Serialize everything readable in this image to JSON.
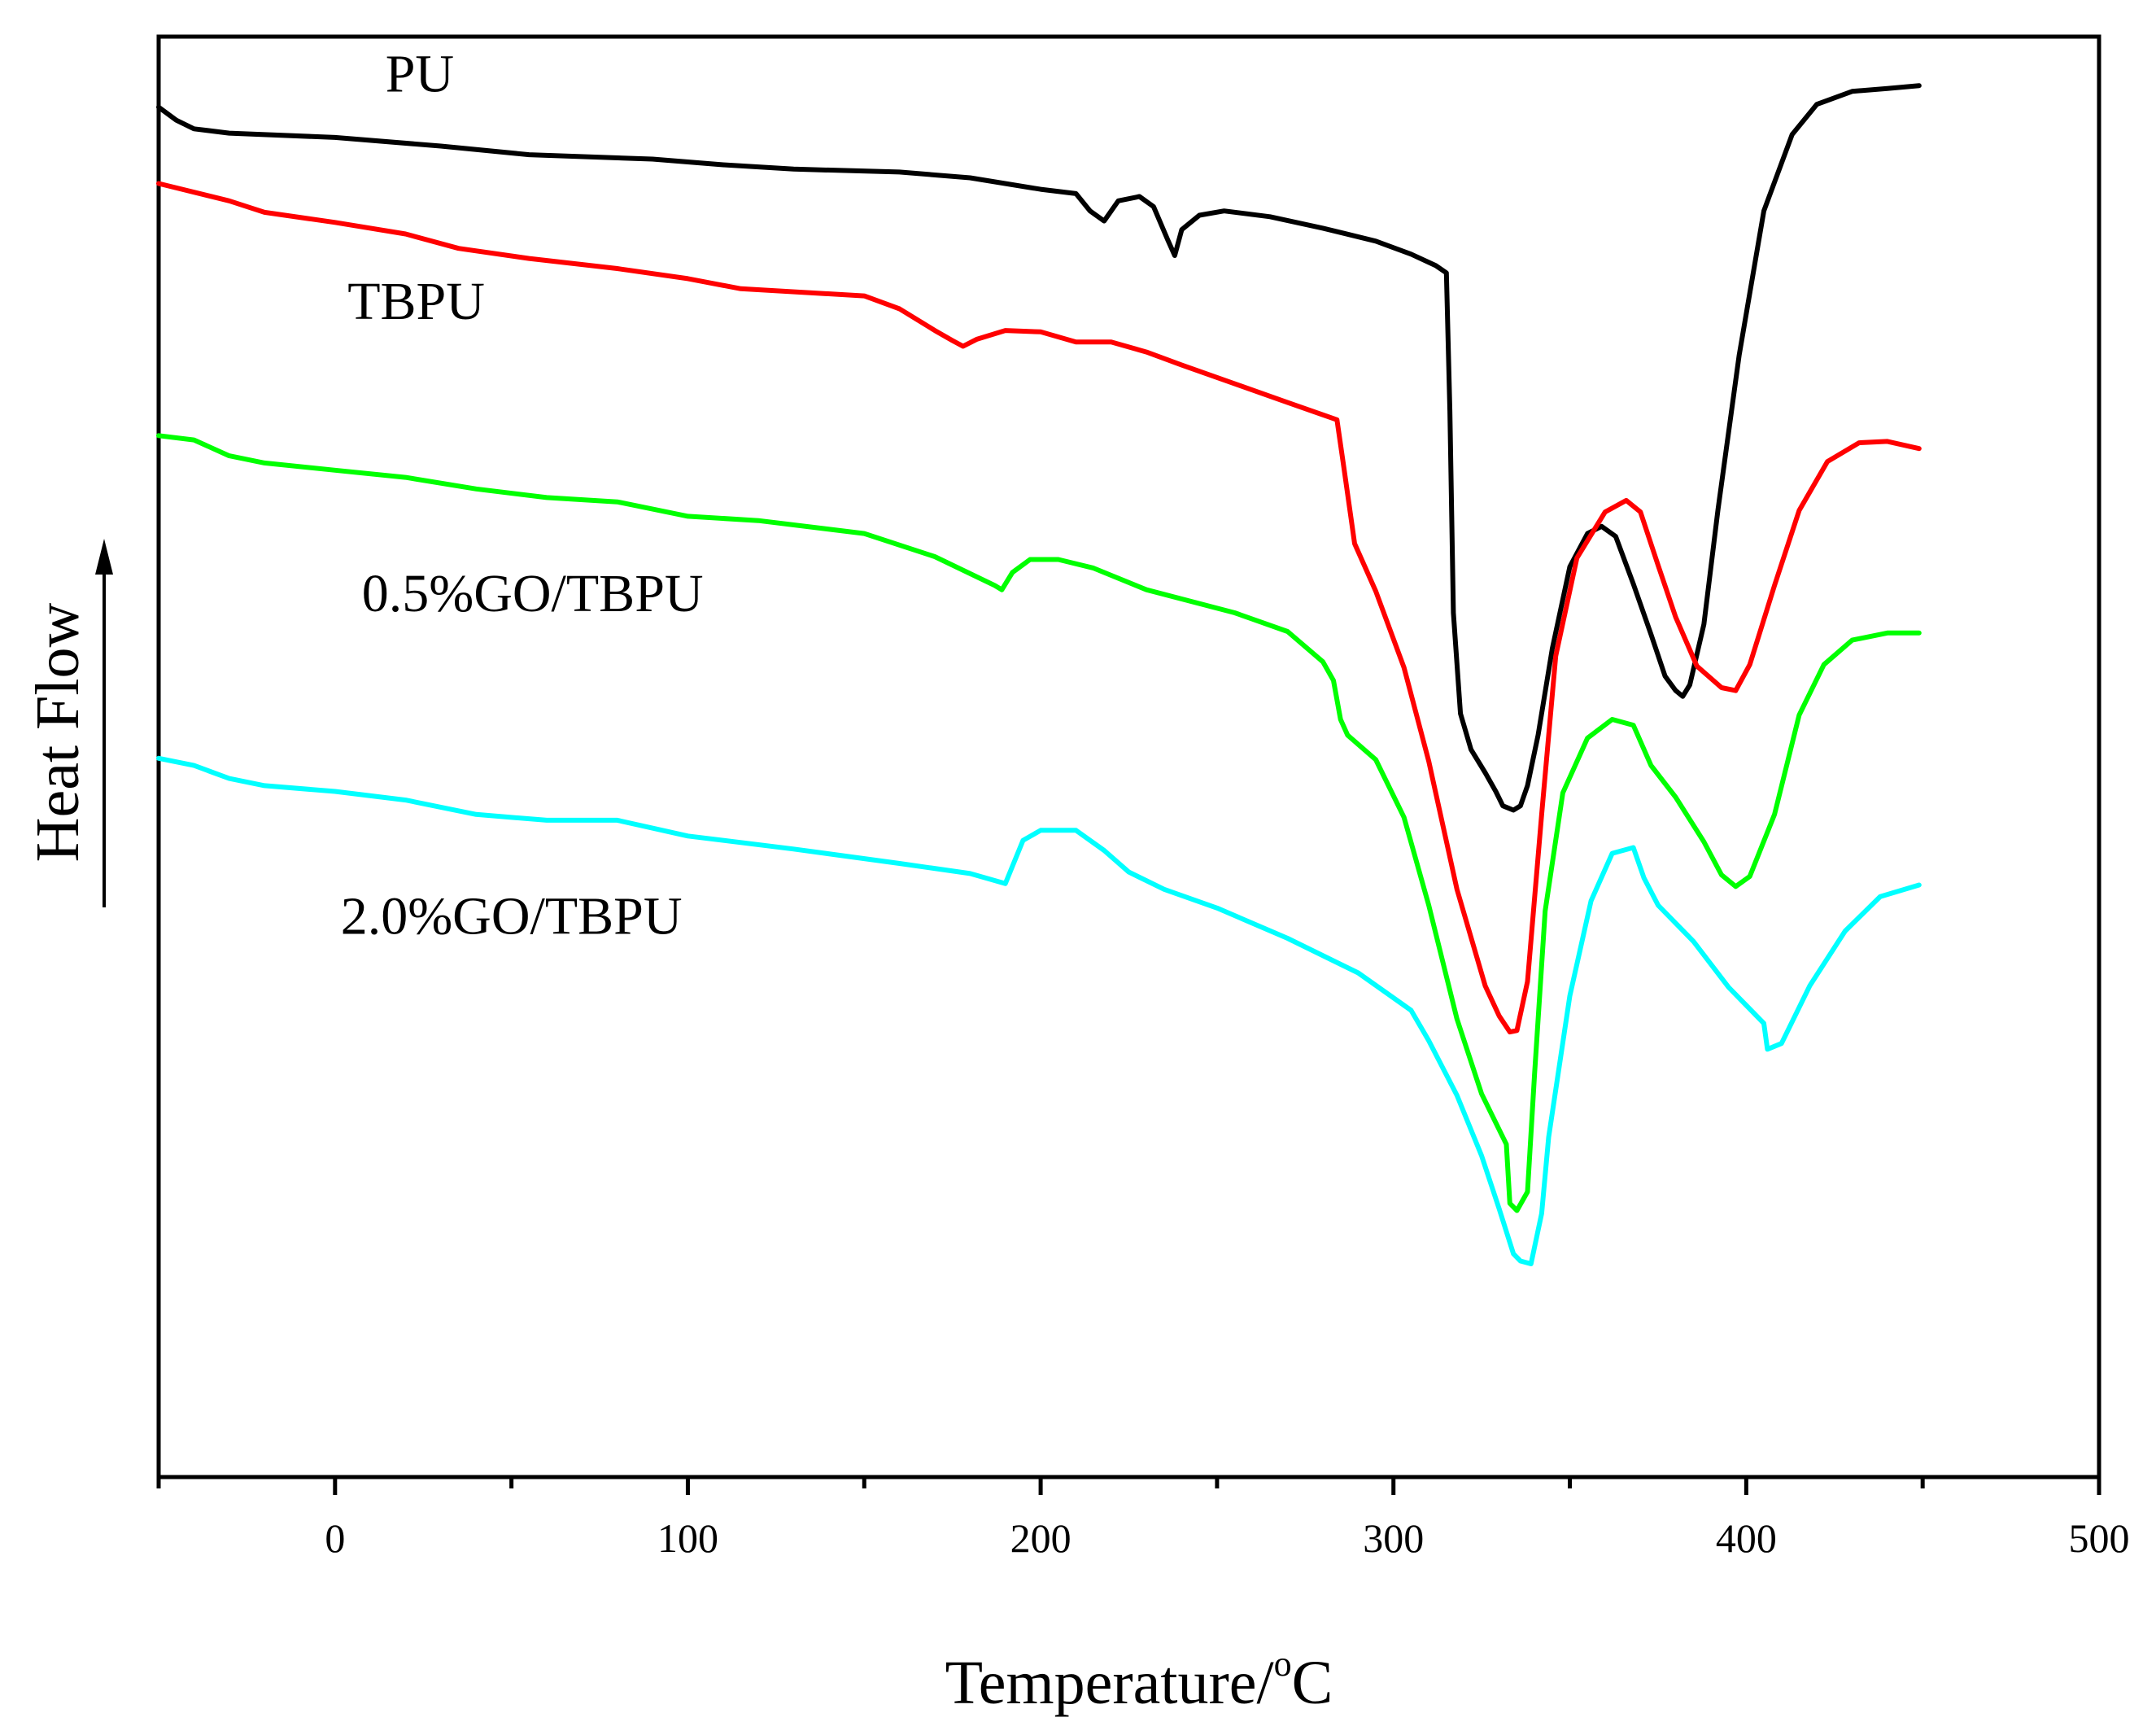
{
  "chart_data": {
    "type": "line",
    "title": "",
    "xlabel": "Temperature/",
    "xlabel_degree": "o",
    "xlabel_unit": "C",
    "ylabel": "Heat Flow",
    "ylabel_arrow": "up",
    "xlim": [
      -50,
      500
    ],
    "ylim": [
      0,
      100
    ],
    "y_ticks_shown": false,
    "grid": false,
    "xticks": [
      {
        "value": 0,
        "label": "0"
      },
      {
        "value": 100,
        "label": "100"
      },
      {
        "value": 200,
        "label": "200"
      },
      {
        "value": 300,
        "label": "300"
      },
      {
        "value": 400,
        "label": "400"
      },
      {
        "value": 500,
        "label": "500"
      }
    ],
    "minor_xticks": [
      -50,
      50,
      150,
      250,
      350,
      450
    ],
    "series": [
      {
        "name": "PU",
        "color": "#000000",
        "label_at": [
          24,
          96.2
        ],
        "points": [
          [
            -50,
            95.1
          ],
          [
            -45,
            94.2
          ],
          [
            -40,
            93.6
          ],
          [
            -30,
            93.3
          ],
          [
            0,
            93.0
          ],
          [
            30,
            92.4
          ],
          [
            55,
            91.8
          ],
          [
            90,
            91.5
          ],
          [
            110,
            91.1
          ],
          [
            130,
            90.8
          ],
          [
            160,
            90.6
          ],
          [
            180,
            90.2
          ],
          [
            200,
            89.4
          ],
          [
            210,
            89.1
          ],
          [
            214,
            87.9
          ],
          [
            218,
            87.2
          ],
          [
            222,
            88.6
          ],
          [
            228,
            88.9
          ],
          [
            232,
            88.2
          ],
          [
            236,
            85.9
          ],
          [
            238,
            84.8
          ],
          [
            240,
            86.6
          ],
          [
            245,
            87.6
          ],
          [
            252,
            87.9
          ],
          [
            265,
            87.5
          ],
          [
            280,
            86.7
          ],
          [
            295,
            85.8
          ],
          [
            305,
            84.9
          ],
          [
            312,
            84.1
          ],
          [
            315,
            83.6
          ],
          [
            316,
            74.0
          ],
          [
            317,
            60.0
          ],
          [
            319,
            53.0
          ],
          [
            322,
            50.5
          ],
          [
            326,
            48.9
          ],
          [
            329,
            47.6
          ],
          [
            331,
            46.6
          ],
          [
            334,
            46.3
          ],
          [
            336,
            46.6
          ],
          [
            338,
            48.0
          ],
          [
            341,
            51.5
          ],
          [
            345,
            57.5
          ],
          [
            350,
            63.2
          ],
          [
            355,
            65.5
          ],
          [
            359,
            66.0
          ],
          [
            363,
            65.3
          ],
          [
            368,
            62.0
          ],
          [
            373,
            58.5
          ],
          [
            377,
            55.6
          ],
          [
            380,
            54.6
          ],
          [
            382,
            54.2
          ],
          [
            384,
            55.0
          ],
          [
            388,
            59.2
          ],
          [
            392,
            67.2
          ],
          [
            398,
            77.9
          ],
          [
            405,
            87.9
          ],
          [
            413,
            93.2
          ],
          [
            420,
            95.3
          ],
          [
            430,
            96.2
          ],
          [
            440,
            96.4
          ],
          [
            449,
            96.6
          ]
        ]
      },
      {
        "name": "TBPU",
        "color": "#ff0000",
        "label_at": [
          23,
          80.4
        ],
        "points": [
          [
            -50,
            89.8
          ],
          [
            -30,
            88.6
          ],
          [
            -20,
            87.8
          ],
          [
            0,
            87.1
          ],
          [
            20,
            86.3
          ],
          [
            35,
            85.3
          ],
          [
            55,
            84.6
          ],
          [
            80,
            83.9
          ],
          [
            100,
            83.2
          ],
          [
            115,
            82.5
          ],
          [
            150,
            82.0
          ],
          [
            160,
            81.1
          ],
          [
            170,
            79.6
          ],
          [
            175,
            78.9
          ],
          [
            178,
            78.5
          ],
          [
            182,
            79.0
          ],
          [
            190,
            79.6
          ],
          [
            200,
            79.5
          ],
          [
            210,
            78.8
          ],
          [
            220,
            78.8
          ],
          [
            230,
            78.1
          ],
          [
            240,
            77.2
          ],
          [
            255,
            75.9
          ],
          [
            270,
            74.6
          ],
          [
            284,
            73.4
          ],
          [
            286,
            70.0
          ],
          [
            289,
            64.8
          ],
          [
            295,
            61.5
          ],
          [
            303,
            56.2
          ],
          [
            310,
            49.7
          ],
          [
            318,
            40.8
          ],
          [
            326,
            34.1
          ],
          [
            330,
            32.0
          ],
          [
            333,
            30.9
          ],
          [
            335,
            31.0
          ],
          [
            338,
            34.4
          ],
          [
            342,
            46.0
          ],
          [
            346,
            57.0
          ],
          [
            352,
            63.8
          ],
          [
            360,
            67.0
          ],
          [
            366,
            67.8
          ],
          [
            370,
            67.0
          ],
          [
            375,
            63.3
          ],
          [
            380,
            59.7
          ],
          [
            386,
            56.3
          ],
          [
            393,
            54.8
          ],
          [
            397,
            54.6
          ],
          [
            401,
            56.4
          ],
          [
            408,
            61.9
          ],
          [
            415,
            67.1
          ],
          [
            423,
            70.5
          ],
          [
            432,
            71.8
          ],
          [
            440,
            71.9
          ],
          [
            449,
            71.4
          ]
        ]
      },
      {
        "name": "0.5%GO/TBPU",
        "color": "#00ff00",
        "label_at": [
          56,
          60.1
        ],
        "points": [
          [
            -50,
            72.3
          ],
          [
            -40,
            72.0
          ],
          [
            -30,
            70.9
          ],
          [
            -20,
            70.4
          ],
          [
            0,
            69.9
          ],
          [
            20,
            69.4
          ],
          [
            40,
            68.6
          ],
          [
            60,
            68.0
          ],
          [
            80,
            67.7
          ],
          [
            100,
            66.7
          ],
          [
            120,
            66.4
          ],
          [
            150,
            65.5
          ],
          [
            170,
            63.9
          ],
          [
            187,
            61.9
          ],
          [
            189,
            61.6
          ],
          [
            192,
            62.8
          ],
          [
            197,
            63.7
          ],
          [
            205,
            63.7
          ],
          [
            215,
            63.1
          ],
          [
            230,
            61.6
          ],
          [
            255,
            60.0
          ],
          [
            270,
            58.7
          ],
          [
            280,
            56.6
          ],
          [
            283,
            55.3
          ],
          [
            285,
            52.6
          ],
          [
            287,
            51.5
          ],
          [
            295,
            49.8
          ],
          [
            303,
            45.8
          ],
          [
            310,
            39.7
          ],
          [
            318,
            31.8
          ],
          [
            325,
            26.6
          ],
          [
            332,
            23.1
          ],
          [
            333,
            19.0
          ],
          [
            335,
            18.5
          ],
          [
            338,
            19.8
          ],
          [
            340,
            28.0
          ],
          [
            343,
            39.3
          ],
          [
            348,
            47.5
          ],
          [
            355,
            51.3
          ],
          [
            362,
            52.6
          ],
          [
            368,
            52.2
          ],
          [
            373,
            49.4
          ],
          [
            380,
            47.2
          ],
          [
            388,
            44.1
          ],
          [
            393,
            41.8
          ],
          [
            397,
            41.0
          ],
          [
            401,
            41.7
          ],
          [
            408,
            46.0
          ],
          [
            415,
            52.9
          ],
          [
            422,
            56.4
          ],
          [
            430,
            58.1
          ],
          [
            440,
            58.6
          ],
          [
            449,
            58.6
          ]
        ]
      },
      {
        "name": "2.0%GO/TBPU",
        "color": "#00ffff",
        "label_at": [
          50,
          37.7
        ],
        "points": [
          [
            -50,
            49.9
          ],
          [
            -40,
            49.4
          ],
          [
            -30,
            48.5
          ],
          [
            -20,
            48.0
          ],
          [
            0,
            47.6
          ],
          [
            20,
            47.0
          ],
          [
            40,
            46.0
          ],
          [
            60,
            45.6
          ],
          [
            80,
            45.6
          ],
          [
            100,
            44.5
          ],
          [
            130,
            43.6
          ],
          [
            160,
            42.6
          ],
          [
            180,
            41.9
          ],
          [
            190,
            41.2
          ],
          [
            192,
            42.4
          ],
          [
            195,
            44.2
          ],
          [
            200,
            44.9
          ],
          [
            210,
            44.9
          ],
          [
            218,
            43.5
          ],
          [
            225,
            42.0
          ],
          [
            235,
            40.8
          ],
          [
            250,
            39.5
          ],
          [
            270,
            37.4
          ],
          [
            290,
            35.0
          ],
          [
            305,
            32.4
          ],
          [
            310,
            30.3
          ],
          [
            318,
            26.5
          ],
          [
            325,
            22.3
          ],
          [
            330,
            18.6
          ],
          [
            334,
            15.5
          ],
          [
            336,
            15.0
          ],
          [
            339,
            14.8
          ],
          [
            342,
            18.3
          ],
          [
            344,
            23.6
          ],
          [
            350,
            33.4
          ],
          [
            356,
            40.0
          ],
          [
            362,
            43.3
          ],
          [
            368,
            43.7
          ],
          [
            371,
            41.6
          ],
          [
            375,
            39.7
          ],
          [
            385,
            37.2
          ],
          [
            395,
            34.0
          ],
          [
            405,
            31.5
          ],
          [
            406,
            29.7
          ],
          [
            410,
            30.1
          ],
          [
            418,
            34.1
          ],
          [
            428,
            37.9
          ],
          [
            438,
            40.3
          ],
          [
            449,
            41.1
          ]
        ]
      }
    ]
  }
}
